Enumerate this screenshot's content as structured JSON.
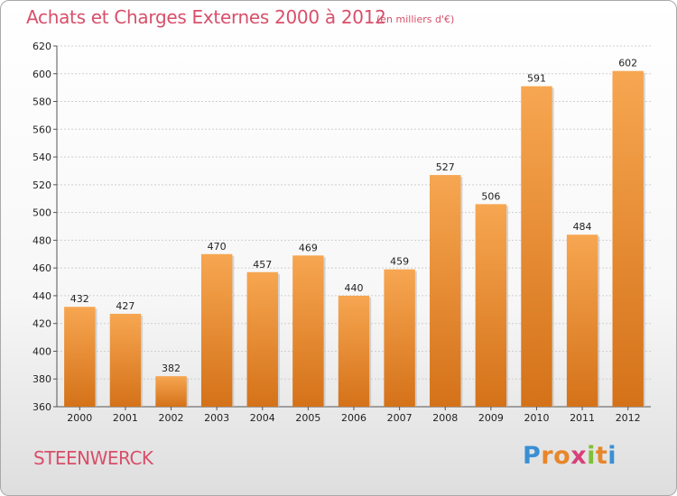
{
  "chart_data": {
    "type": "bar",
    "title": "Achats et Charges Externes 2000 à 2012",
    "subtitle": "(en milliers d'€)",
    "categories": [
      "2000",
      "2001",
      "2002",
      "2003",
      "2004",
      "2005",
      "2006",
      "2007",
      "2008",
      "2009",
      "2010",
      "2011",
      "2012"
    ],
    "values": [
      432,
      427,
      382,
      470,
      457,
      469,
      440,
      459,
      527,
      506,
      591,
      484,
      602
    ],
    "ylim": [
      360,
      620
    ],
    "yticks": [
      360,
      380,
      400,
      420,
      440,
      460,
      480,
      500,
      520,
      540,
      560,
      580,
      600,
      620
    ],
    "grid": true,
    "bar_color_top": "#f7a651",
    "bar_color_bottom": "#d47219"
  },
  "footer": {
    "commune": "STEENWERCK",
    "logo_letters": [
      {
        "ch": "P",
        "color": "#3a8fd4"
      },
      {
        "ch": "r",
        "color": "#e8862a"
      },
      {
        "ch": "o",
        "color": "#e8862a"
      },
      {
        "ch": "x",
        "color": "#d8407a"
      },
      {
        "ch": "i",
        "color": "#7fbf3a"
      },
      {
        "ch": "t",
        "color": "#e8862a"
      },
      {
        "ch": "i",
        "color": "#3a8fd4"
      }
    ]
  }
}
